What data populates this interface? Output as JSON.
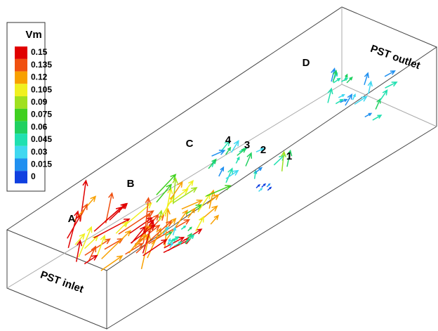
{
  "legend": {
    "title": "Vm",
    "levels": [
      0.15,
      0.135,
      0.12,
      0.105,
      0.09,
      0.075,
      0.06,
      0.045,
      0.03,
      0.015,
      0
    ],
    "colors": [
      "#e00000",
      "#f05010",
      "#f8a000",
      "#f0f020",
      "#a0e020",
      "#40d020",
      "#20d060",
      "#20e0b0",
      "#40d8f0",
      "#2090f0",
      "#1040e0"
    ]
  },
  "section_labels": [
    "A",
    "B",
    "C",
    "D"
  ],
  "plane_labels": [
    "1",
    "2",
    "3",
    "4"
  ],
  "inlet_label": "PST inlet",
  "outlet_label": "PST outlet"
}
